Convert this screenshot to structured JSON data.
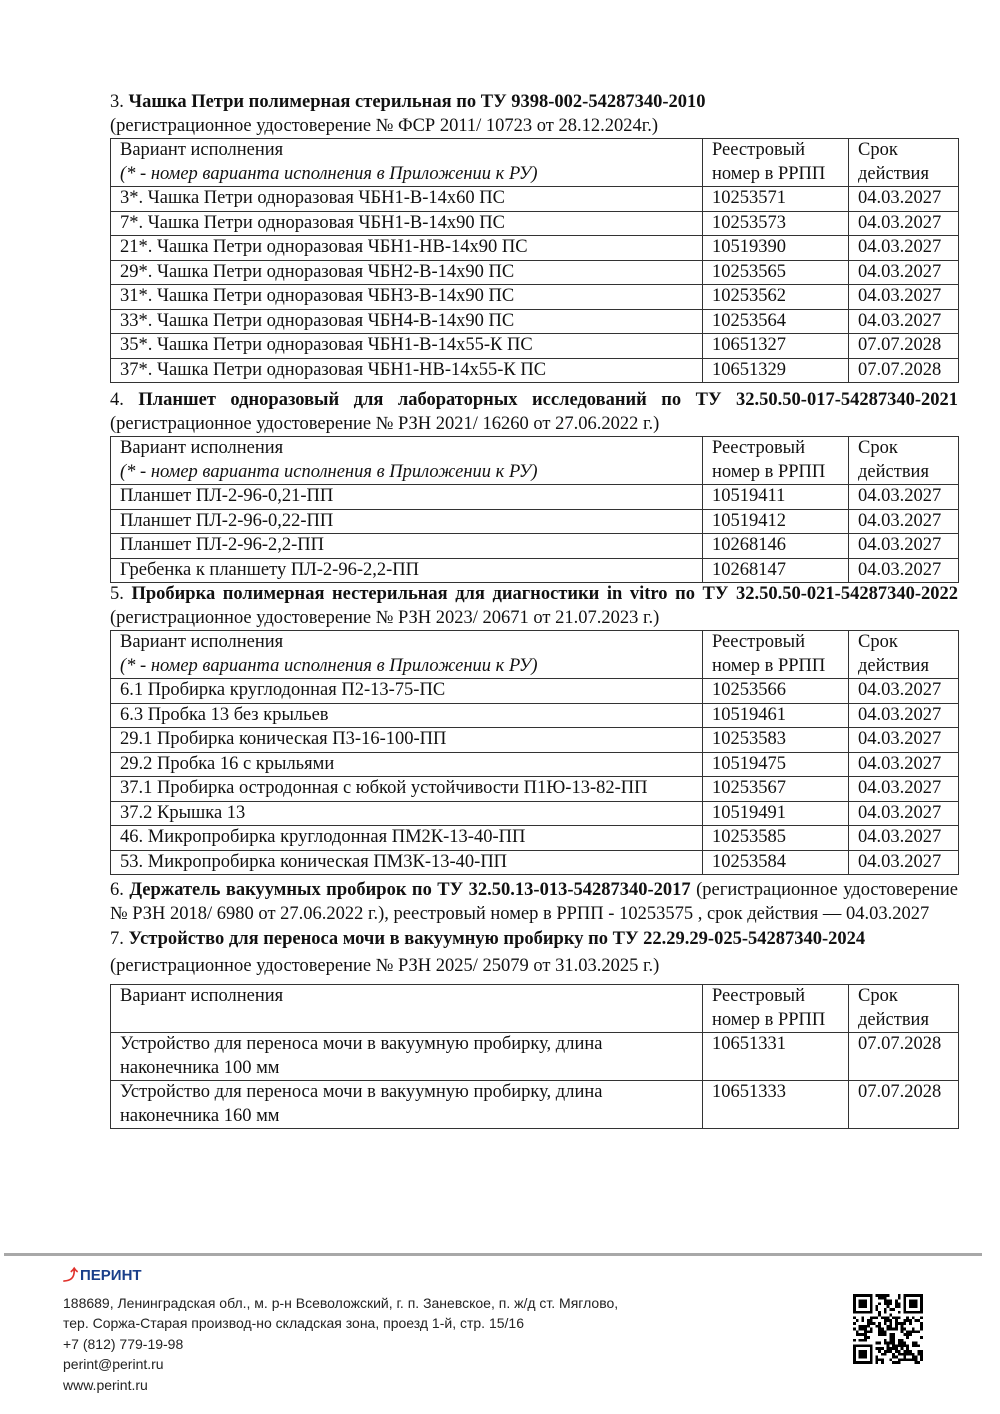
{
  "table_header": {
    "col1_line1": "Вариант исполнения",
    "col1_line2": "(* - номер варианта исполнения в Приложении к РУ)",
    "col2": "Реестровый номер в РРПП",
    "col3": "Срок действия"
  },
  "s3": {
    "num": "3. ",
    "title": "Чашка Петри полимерная стерильная по ТУ 9398-002-54287340-2010",
    "reg": "(регистрационное удостоверение № ФСР 2011/ 10723 от 28.12.2024г.)",
    "rows": [
      [
        "3*. Чашка Петри одноразовая ЧБН1-В-14х60 ПС",
        "10253571",
        "04.03.2027"
      ],
      [
        "7*. Чашка Петри одноразовая ЧБН1-В-14х90 ПС",
        "10253573",
        "04.03.2027"
      ],
      [
        "21*. Чашка Петри одноразовая ЧБН1-НВ-14х90 ПС",
        "10519390",
        "04.03.2027"
      ],
      [
        "29*. Чашка Петри одноразовая ЧБН2-В-14х90 ПС",
        "10253565",
        "04.03.2027"
      ],
      [
        "31*. Чашка Петри одноразовая ЧБН3-В-14х90 ПС",
        "10253562",
        "04.03.2027"
      ],
      [
        "33*. Чашка Петри одноразовая ЧБН4-В-14х90 ПС",
        "10253564",
        "04.03.2027"
      ],
      [
        "35*. Чашка Петри одноразовая ЧБН1-В-14х55-К ПС",
        "10651327",
        "07.07.2028"
      ],
      [
        "37*. Чашка Петри одноразовая ЧБН1-НВ-14х55-К ПС",
        "10651329",
        "07.07.2028"
      ]
    ]
  },
  "s4": {
    "num": "4. ",
    "title": "Планшет одноразовый для лабораторных исследований по ТУ 32.50.50-017-54287340-2021",
    "reg": " (регистрационное удостоверение № РЗН 2021/ 16260 от 27.06.2022 г.)",
    "rows": [
      [
        "Планшет ПЛ-2-96-0,21-ПП",
        "10519411",
        "04.03.2027"
      ],
      [
        "Планшет ПЛ-2-96-0,22-ПП",
        "10519412",
        "04.03.2027"
      ],
      [
        "Планшет ПЛ-2-96-2,2-ПП",
        "10268146",
        "04.03.2027"
      ],
      [
        "Гребенка к планшету ПЛ-2-96-2,2-ПП",
        "10268147",
        "04.03.2027"
      ]
    ]
  },
  "s5": {
    "num": "5. ",
    "title": "Пробирка полимерная нестерильная для диагностики in vitro по ТУ 32.50.50-021-54287340-2022",
    "reg": " (регистрационное удостоверение № РЗН 2023/ 20671 от 21.07.2023 г.)",
    "rows": [
      [
        "6.1 Пробирка круглодонная П2-13-75-ПС",
        "10253566",
        "04.03.2027"
      ],
      [
        "6.3 Пробка 13 без крыльев",
        "10519461",
        "04.03.2027"
      ],
      [
        "29.1 Пробирка коническая П3-16-100-ПП",
        "10253583",
        "04.03.2027"
      ],
      [
        "29.2 Пробка 16 с крыльями",
        "10519475",
        "04.03.2027"
      ],
      [
        "37.1 Пробирка остродонная с юбкой устойчивости П1Ю-13-82-ПП",
        "10253567",
        "04.03.2027"
      ],
      [
        "37.2 Крышка 13",
        "10519491",
        "04.03.2027"
      ],
      [
        "46. Микропробирка круглодонная ПМ2К-13-40-ПП",
        "10253585",
        "04.03.2027"
      ],
      [
        "53. Микропробирка коническая ПМ3К-13-40-ПП",
        "10253584",
        "04.03.2027"
      ]
    ]
  },
  "s6": {
    "num": "6. ",
    "title": "Держатель вакуумных пробирок по ТУ 32.50.13-013-54287340-2017",
    "rest": " (регистрационное удостоверение № РЗН 2018/ 6980 от 27.06.2022 г.), реестровый номер в РРПП - 10253575 , срок действия — 04.03.2027"
  },
  "s7": {
    "num": "7. ",
    "title": "Устройство для переноса мочи в вакуумную пробирку по ТУ 22.29.29-025-54287340-2024",
    "reg": "(регистрационное удостоверение № РЗН 2025/ 25079 от 31.03.2025 г.)",
    "rows": [
      [
        "Устройство для переноса мочи в вакуумную пробирку, длина наконечника 100 мм",
        "10651331",
        "07.07.2028"
      ],
      [
        "Устройство для переноса мочи в вакуумную пробирку, длина наконечника 160 мм",
        "10651333",
        "07.07.2028"
      ]
    ]
  },
  "footer": {
    "logo_text": "ПЕРИНТ",
    "address1": "188689, Ленинградская обл., м. р-н Всеволожский, г. п. Заневское, п. ж/д ст. Мяглово,",
    "address2": "тер. Соржа-Старая производ-но складская зона, проезд 1-й, стр. 15/16",
    "phone": "+7 (812) 779-19-98",
    "email": "perint@perint.ru",
    "website": "www.perint.ru",
    "brand_color": "#1a3f8a",
    "logo_mark_color": "#e0312b"
  }
}
